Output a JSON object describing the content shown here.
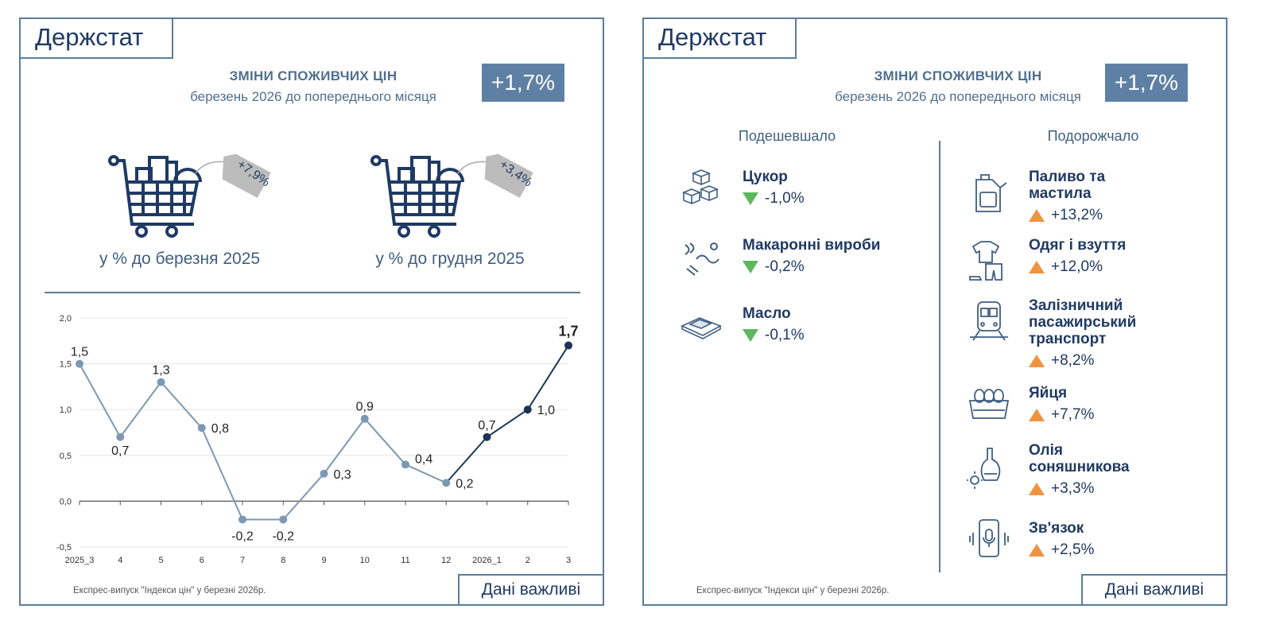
{
  "brand": "Держстат",
  "headline": {
    "title": "ЗМІНИ СПОЖИВЧИХ ЦІН",
    "subtitle": "березень 2026 до попереднього місяця",
    "value": "+1,7%"
  },
  "carts": [
    {
      "tag": "+7,9%",
      "caption": "у % до березня 2025"
    },
    {
      "tag": "+3,4%",
      "caption": "у % до грудня 2025"
    }
  ],
  "footer": "Експрес-випуск \"Індекси цін\" у березні 2026р.",
  "button": "Дані важливі",
  "colors": {
    "navy": "#1f3a63",
    "badge": "#5e80a4",
    "line_past": "#7d98b3",
    "line_recent": "#1c3557",
    "down": "#5cb85c",
    "up": "#f0933f"
  },
  "cheaper": {
    "title": "Подешевшало",
    "items": [
      {
        "name": "Цукор",
        "value": "-1,0%",
        "icon": "sugar-cubes-icon"
      },
      {
        "name": "Макаронні вироби",
        "value": "-0,2%",
        "icon": "pasta-icon"
      },
      {
        "name": "Масло",
        "value": "-0,1%",
        "icon": "butter-icon"
      }
    ]
  },
  "pricier": {
    "title": "Подорожчало",
    "items": [
      {
        "name": "Паливо та мастила",
        "value": "+13,2%",
        "icon": "fuel-canister-icon"
      },
      {
        "name": "Одяг і взуття",
        "value": "+12,0%",
        "icon": "clothes-icon"
      },
      {
        "name": "Залізничний пасажирський транспорт",
        "value": "+8,2%",
        "icon": "train-icon"
      },
      {
        "name": "Яйця",
        "value": "+7,7%",
        "icon": "eggs-icon"
      },
      {
        "name": "Олія соняшникова",
        "value": "+3,3%",
        "icon": "oil-bottle-icon"
      },
      {
        "name": "Зв'язок",
        "value": "+2,5%",
        "icon": "phone-icon"
      }
    ]
  },
  "chart_data": {
    "type": "line",
    "categories": [
      "2025_3",
      "4",
      "5",
      "6",
      "7",
      "8",
      "9",
      "10",
      "11",
      "12",
      "2026_1",
      "2",
      "3"
    ],
    "values": [
      1.5,
      0.7,
      1.3,
      0.8,
      -0.2,
      -0.2,
      0.3,
      0.9,
      0.4,
      0.2,
      0.7,
      1.0,
      1.7
    ],
    "labels": [
      "1,5",
      "0,7",
      "1,3",
      "0,8",
      "-0,2",
      "-0,2",
      "0,3",
      "0,9",
      "0,4",
      "0,2",
      "0,7",
      "1,0",
      "1,7"
    ],
    "ylim": [
      -0.5,
      2.0
    ],
    "yticks": [
      "-0,5",
      "0,0",
      "0,5",
      "1,0",
      "1,5",
      "2,0"
    ],
    "ytick_values": [
      -0.5,
      0,
      0.5,
      1.0,
      1.5,
      2.0
    ],
    "grid": true,
    "highlight_from_index": 9
  }
}
